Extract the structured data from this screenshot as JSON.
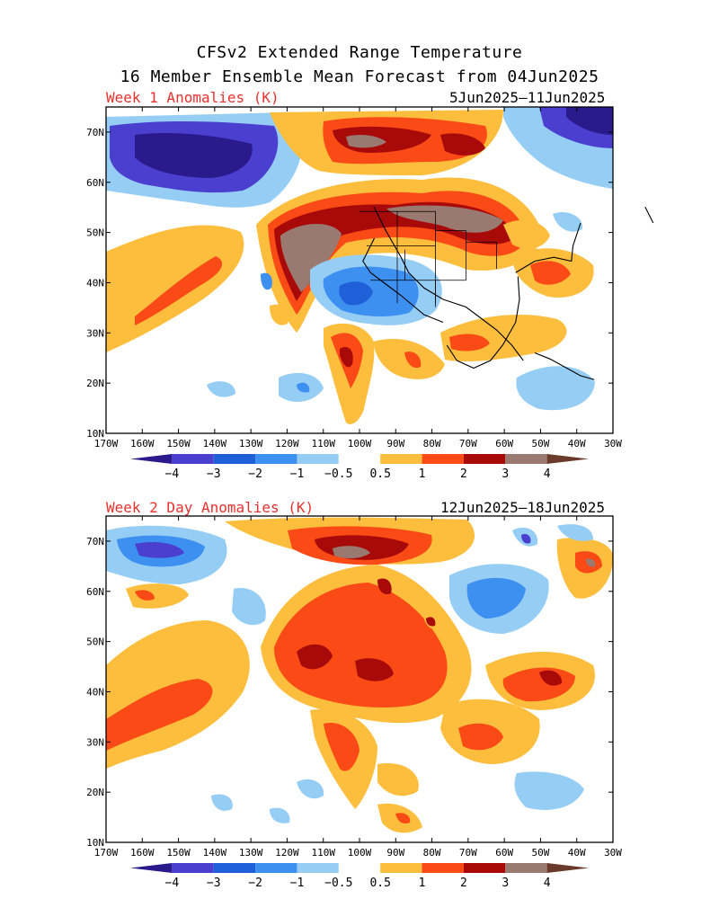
{
  "header": {
    "title_line1": "CFSv2 Extended Range Temperature",
    "title_line2": "16 Member Ensemble Mean Forecast from 04Jun2025"
  },
  "panels": [
    {
      "title": "Week 1 Anomalies (K)",
      "dates": "5Jun2025–11Jun2025"
    },
    {
      "title": "Week 2 Day Anomalies (K)",
      "dates": "12Jun2025–18Jun2025"
    }
  ],
  "map": {
    "lat_labels": [
      "70N",
      "60N",
      "50N",
      "40N",
      "30N",
      "20N",
      "10N"
    ],
    "lat_values": [
      70,
      60,
      50,
      40,
      30,
      20,
      10
    ],
    "lon_labels": [
      "170W",
      "160W",
      "150W",
      "140W",
      "130W",
      "120W",
      "110W",
      "100W",
      "90W",
      "80W",
      "70W",
      "60W",
      "50W",
      "40W",
      "30W"
    ],
    "lon_values": [
      -170,
      -160,
      -150,
      -140,
      -130,
      -120,
      -110,
      -100,
      -90,
      -80,
      -70,
      -60,
      -50,
      -40,
      -30
    ],
    "extent": {
      "lon": [
        -170,
        -30
      ],
      "lat": [
        10,
        75
      ]
    }
  },
  "colorbar": {
    "labels": [
      "−4",
      "−3",
      "−2",
      "−1",
      "−0.5",
      "0.5",
      "1",
      "2",
      "3",
      "4"
    ],
    "colors": [
      "#2a1a8c",
      "#4b3fd0",
      "#1f5fd8",
      "#3d8ff0",
      "#96cdf5",
      "#ffffff",
      "#fdbe3d",
      "#fa4b16",
      "#a80a0a",
      "#9a7a70",
      "#6a3a2a"
    ]
  },
  "anomaly_colors": {
    "neg4": "#2a1a8c",
    "neg3": "#4b3fd0",
    "neg2": "#1f5fd8",
    "neg1": "#3d8ff0",
    "neg05": "#96cdf5",
    "pos05": "#fdbe3d",
    "pos1": "#fa4b16",
    "pos2": "#a80a0a",
    "pos3": "#9a7a70",
    "pos4": "#6a3a2a"
  }
}
